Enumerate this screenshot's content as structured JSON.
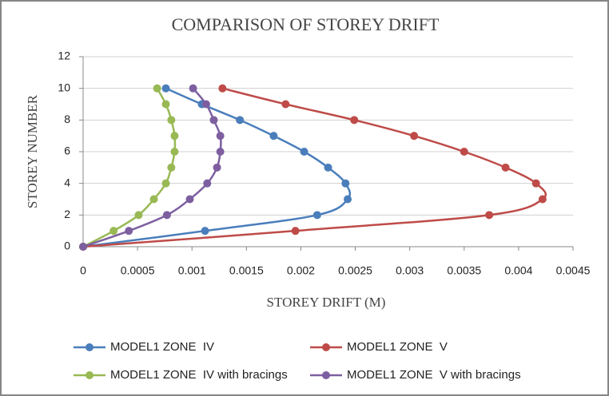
{
  "chart_data": {
    "type": "scatter-smooth",
    "title": "COMPARISON OF STOREY DRIFT",
    "x_label": "STOREY DRIFT (M)",
    "y_label": "STOREY NUMBER",
    "xlim": [
      0,
      0.0045
    ],
    "xticks": [
      0,
      0.0005,
      0.001,
      0.0015,
      0.002,
      0.0025,
      0.003,
      0.0035,
      0.004,
      0.0045
    ],
    "ylim": [
      0,
      12
    ],
    "yticks": [
      0,
      2,
      4,
      6,
      8,
      10,
      12
    ],
    "grid": true,
    "legend": "bottom",
    "series": [
      {
        "name": "MODEL1 ZONE  IV",
        "color": "#4a7ebb",
        "x": [
          0,
          0.00112,
          0.00215,
          0.00243,
          0.00241,
          0.00225,
          0.00203,
          0.00175,
          0.00144,
          0.00109,
          0.00076
        ],
        "values": [
          0,
          1,
          2,
          3,
          4,
          5,
          6,
          7,
          8,
          9,
          10
        ]
      },
      {
        "name": "MODEL1 ZONE  V",
        "color": "#be4b48",
        "x": [
          0,
          0.00195,
          0.00373,
          0.00422,
          0.00416,
          0.00388,
          0.0035,
          0.00304,
          0.00249,
          0.00186,
          0.00128
        ],
        "values": [
          0,
          1,
          2,
          3,
          4,
          5,
          6,
          7,
          8,
          9,
          10
        ]
      },
      {
        "name": "MODEL1 ZONE  IV with bracings",
        "color": "#98b954",
        "x": [
          0,
          0.00028,
          0.00051,
          0.00065,
          0.00076,
          0.00081,
          0.00084,
          0.00084,
          0.00081,
          0.00076,
          0.00068
        ],
        "values": [
          0,
          1,
          2,
          3,
          4,
          5,
          6,
          7,
          8,
          9,
          10
        ]
      },
      {
        "name": "MODEL1 ZONE  V with bracings",
        "color": "#7d5fa0",
        "x": [
          0,
          0.00042,
          0.00077,
          0.00098,
          0.00114,
          0.00123,
          0.00126,
          0.00126,
          0.0012,
          0.00113,
          0.00101
        ],
        "values": [
          0,
          1,
          2,
          3,
          4,
          5,
          6,
          7,
          8,
          9,
          10
        ]
      }
    ]
  }
}
